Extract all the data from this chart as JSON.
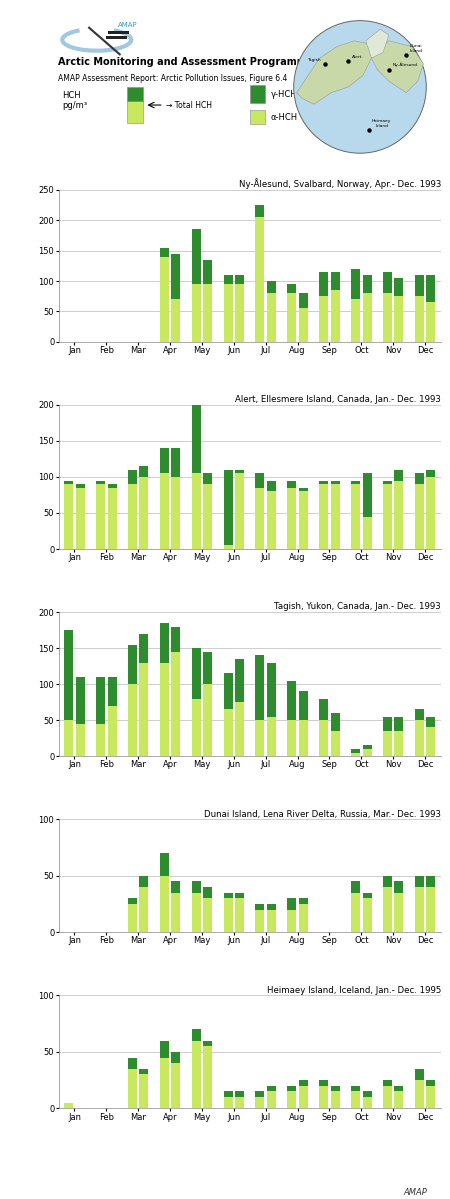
{
  "title_main": "Arctic Monitoring and Assessment Programme",
  "title_sub": "AMAP Assessment Report: Arctic Pollution Issues, Figure 6.4",
  "alpha_color": "#c8e860",
  "gamma_color": "#2e8b2e",
  "bg_color": "#ffffff",
  "charts": [
    {
      "title": "Ny-Ålesund, Svalbard, Norway, Apr.- Dec. 1993",
      "ylim": [
        0,
        250
      ],
      "yticks": [
        0,
        50,
        100,
        150,
        200,
        250
      ],
      "months": [
        "Jan",
        "Feb",
        "Mar",
        "Apr",
        "May",
        "Jun",
        "Jul",
        "Aug",
        "Sep",
        "Oct",
        "Nov",
        "Dec"
      ],
      "alpha_vals": [
        0,
        0,
        0,
        140,
        95,
        95,
        205,
        80,
        75,
        70,
        80,
        75
      ],
      "gamma_vals": [
        0,
        0,
        0,
        15,
        90,
        15,
        20,
        15,
        40,
        50,
        35,
        35
      ],
      "alpha_vals2": [
        0,
        0,
        0,
        70,
        95,
        95,
        80,
        55,
        85,
        80,
        75,
        65
      ],
      "gamma_vals2": [
        0,
        0,
        0,
        75,
        40,
        15,
        20,
        25,
        30,
        30,
        30,
        45
      ]
    },
    {
      "title": "Alert, Ellesmere Island, Canada, Jan.- Dec. 1993",
      "ylim": [
        0,
        200
      ],
      "yticks": [
        0,
        50,
        100,
        150,
        200
      ],
      "months": [
        "Jan",
        "Feb",
        "Mar",
        "Apr",
        "May",
        "Jun",
        "Jul",
        "Aug",
        "Sep",
        "Oct",
        "Nov",
        "Dec"
      ],
      "alpha_vals": [
        90,
        90,
        90,
        105,
        105,
        5,
        85,
        85,
        90,
        90,
        90,
        90
      ],
      "gamma_vals": [
        5,
        5,
        20,
        35,
        130,
        105,
        20,
        10,
        5,
        5,
        5,
        15
      ],
      "alpha_vals2": [
        85,
        85,
        100,
        100,
        90,
        105,
        80,
        80,
        90,
        45,
        95,
        100
      ],
      "gamma_vals2": [
        5,
        5,
        15,
        40,
        15,
        5,
        15,
        5,
        5,
        60,
        15,
        10
      ]
    },
    {
      "title": "Tagish, Yukon, Canada, Jan.- Dec. 1993",
      "ylim": [
        0,
        200
      ],
      "yticks": [
        0,
        50,
        100,
        150,
        200
      ],
      "months": [
        "Jan",
        "Feb",
        "Mar",
        "Apr",
        "May",
        "Jun",
        "Jul",
        "Aug",
        "Sep",
        "Oct",
        "Nov",
        "Dec"
      ],
      "alpha_vals": [
        50,
        45,
        100,
        130,
        80,
        65,
        50,
        50,
        50,
        5,
        35,
        50
      ],
      "gamma_vals": [
        125,
        65,
        55,
        55,
        70,
        50,
        90,
        55,
        30,
        5,
        20,
        15
      ],
      "alpha_vals2": [
        45,
        70,
        130,
        145,
        100,
        75,
        55,
        50,
        35,
        10,
        35,
        40
      ],
      "gamma_vals2": [
        65,
        40,
        40,
        35,
        45,
        60,
        75,
        40,
        25,
        5,
        20,
        15
      ]
    },
    {
      "title": "Dunai Island, Lena River Delta, Russia, Mar.- Dec. 1993",
      "ylim": [
        0,
        100
      ],
      "yticks": [
        0,
        50,
        100
      ],
      "months": [
        "Jan",
        "Feb",
        "Mar",
        "Apr",
        "May",
        "Jun",
        "Jul",
        "Aug",
        "Sep",
        "Oct",
        "Nov",
        "Dec"
      ],
      "alpha_vals": [
        0,
        0,
        25,
        50,
        35,
        30,
        20,
        20,
        0,
        35,
        40,
        40
      ],
      "gamma_vals": [
        0,
        0,
        5,
        20,
        10,
        5,
        5,
        10,
        0,
        10,
        10,
        10
      ],
      "alpha_vals2": [
        0,
        0,
        40,
        35,
        30,
        30,
        20,
        25,
        0,
        30,
        35,
        40
      ],
      "gamma_vals2": [
        0,
        0,
        10,
        10,
        10,
        5,
        5,
        5,
        0,
        5,
        10,
        10
      ]
    },
    {
      "title": "Heimaey Island, Iceland, Jan.- Dec. 1995",
      "ylim": [
        0,
        100
      ],
      "yticks": [
        0,
        50,
        100
      ],
      "months": [
        "Jan",
        "Feb",
        "Mar",
        "Apr",
        "May",
        "Jun",
        "Jul",
        "Aug",
        "Sep",
        "Oct",
        "Nov",
        "Dec"
      ],
      "alpha_vals": [
        5,
        0,
        35,
        45,
        60,
        10,
        10,
        15,
        20,
        15,
        20,
        25
      ],
      "gamma_vals": [
        0,
        0,
        10,
        15,
        10,
        5,
        5,
        5,
        5,
        5,
        5,
        10
      ],
      "alpha_vals2": [
        0,
        0,
        30,
        40,
        55,
        10,
        15,
        20,
        15,
        10,
        15,
        20
      ],
      "gamma_vals2": [
        0,
        0,
        5,
        10,
        5,
        5,
        5,
        5,
        5,
        5,
        5,
        5
      ]
    }
  ]
}
